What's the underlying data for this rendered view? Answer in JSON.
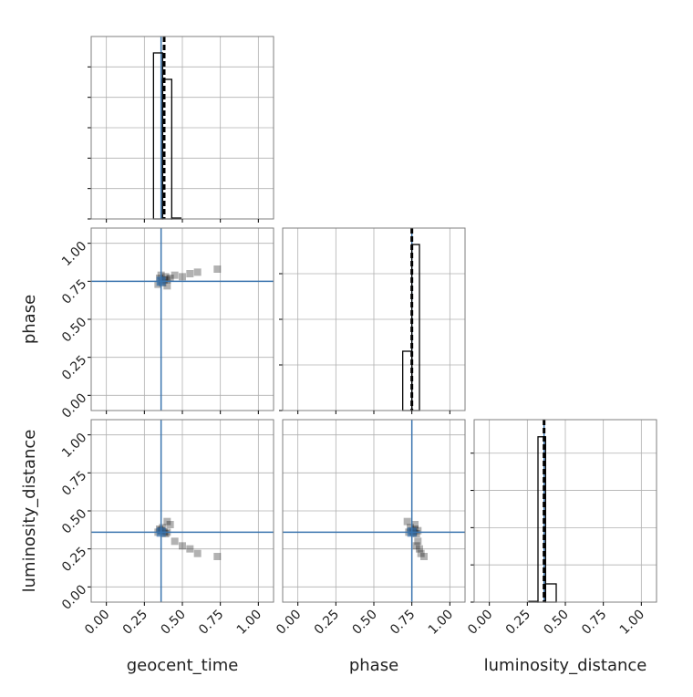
{
  "chart_data": {
    "type": "corner",
    "parameters": [
      "geocent_time",
      "phase",
      "luminosity_distance"
    ],
    "xlim": [
      -0.1,
      1.1
    ],
    "ylim": [
      -0.1,
      1.1
    ],
    "ticks": [
      {
        "value": 0,
        "label": "0.00"
      },
      {
        "value": 0.25,
        "label": "0.25"
      },
      {
        "value": 0.5,
        "label": "0.50"
      },
      {
        "value": 0.75,
        "label": "0.75"
      },
      {
        "value": 1,
        "label": "1.00"
      }
    ],
    "truths": [
      0.36,
      0.75,
      0.36
    ],
    "truth_color": "#3b75af",
    "medians": [
      0.38,
      0.75,
      0.36
    ],
    "grid": true,
    "histograms": [
      {
        "bins": [
          0.31,
          0.37,
          0.43,
          0.49
        ],
        "counts": [
          5.46,
          4.59,
          0.03
        ],
        "ylim": [
          0,
          6
        ],
        "yticks": [
          0,
          1,
          2,
          3,
          4,
          5
        ]
      },
      {
        "bins": [
          0.69,
          0.75,
          0.8
        ],
        "counts": [
          1.3,
          3.64
        ],
        "ylim": [
          0,
          4
        ],
        "yticks": [
          0,
          1,
          2,
          3
        ]
      },
      {
        "bins": [
          0.26,
          0.32,
          0.37,
          0.44
        ],
        "counts": [
          0.02,
          4.44,
          0.49
        ],
        "ylim": [
          0,
          4.9
        ],
        "yticks": [
          0,
          1,
          2,
          3,
          4
        ]
      }
    ],
    "samples": {
      "geocent_time": [
        0.36,
        0.38,
        0.35,
        0.39,
        0.37,
        0.4,
        0.36,
        0.34,
        0.42,
        0.45,
        0.5,
        0.55,
        0.6,
        0.73,
        0.4
      ],
      "phase": [
        0.75,
        0.76,
        0.77,
        0.78,
        0.74,
        0.76,
        0.79,
        0.73,
        0.77,
        0.79,
        0.78,
        0.8,
        0.81,
        0.83,
        0.72
      ],
      "luminosity_distance": [
        0.37,
        0.36,
        0.38,
        0.35,
        0.39,
        0.36,
        0.37,
        0.36,
        0.41,
        0.3,
        0.27,
        0.25,
        0.22,
        0.2,
        0.43
      ]
    }
  }
}
